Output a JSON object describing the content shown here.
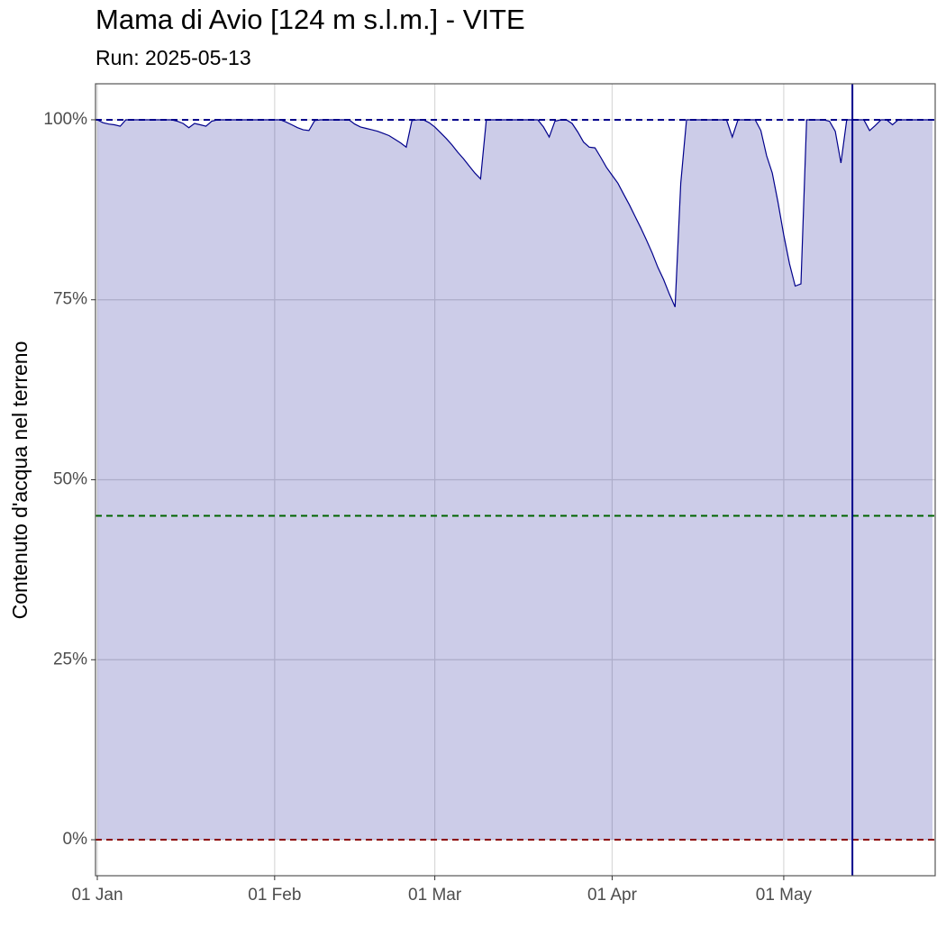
{
  "chart_data": {
    "type": "area",
    "title": "Mama di Avio [124 m s.l.m.] - VITE",
    "subtitle": "Run: 2025-05-13",
    "y_label": "Contenuto d'acqua nel terreno",
    "x": [
      "01-01",
      "01-02",
      "01-03",
      "01-04",
      "01-05",
      "01-06",
      "01-07",
      "01-08",
      "01-09",
      "01-10",
      "01-11",
      "01-12",
      "01-13",
      "01-14",
      "01-15",
      "01-16",
      "01-17",
      "01-18",
      "01-19",
      "01-20",
      "01-21",
      "01-22",
      "01-23",
      "01-24",
      "01-25",
      "01-26",
      "01-27",
      "01-28",
      "01-29",
      "01-30",
      "01-31",
      "02-01",
      "02-02",
      "02-03",
      "02-04",
      "02-05",
      "02-06",
      "02-07",
      "02-08",
      "02-09",
      "02-10",
      "02-11",
      "02-12",
      "02-13",
      "02-14",
      "02-15",
      "02-16",
      "02-17",
      "02-18",
      "02-19",
      "02-20",
      "02-21",
      "02-22",
      "02-23",
      "02-24",
      "02-25",
      "02-26",
      "02-27",
      "02-28",
      "03-01",
      "03-02",
      "03-03",
      "03-04",
      "03-05",
      "03-06",
      "03-07",
      "03-08",
      "03-09",
      "03-10",
      "03-11",
      "03-12",
      "03-13",
      "03-14",
      "03-15",
      "03-16",
      "03-17",
      "03-18",
      "03-19",
      "03-20",
      "03-21",
      "03-22",
      "03-23",
      "03-24",
      "03-25",
      "03-26",
      "03-27",
      "03-28",
      "03-29",
      "03-30",
      "03-31",
      "04-01",
      "04-02",
      "04-03",
      "04-04",
      "04-05",
      "04-06",
      "04-07",
      "04-08",
      "04-09",
      "04-10",
      "04-11",
      "04-12",
      "04-13",
      "04-14",
      "04-15",
      "04-16",
      "04-17",
      "04-18",
      "04-19",
      "04-20",
      "04-21",
      "04-22",
      "04-23",
      "04-24",
      "04-25",
      "04-26",
      "04-27",
      "04-28",
      "04-29",
      "04-30",
      "05-01",
      "05-02",
      "05-03",
      "05-04",
      "05-05",
      "05-06",
      "05-07",
      "05-08",
      "05-09",
      "05-10",
      "05-11",
      "05-12",
      "05-13",
      "05-14",
      "05-15",
      "05-16",
      "05-17",
      "05-18",
      "05-19",
      "05-20",
      "05-21",
      "05-22",
      "05-23",
      "05-24",
      "05-25",
      "05-26",
      "05-27"
    ],
    "series": [
      {
        "color": "#00008b",
        "values": [
          100,
          99.6,
          99.4,
          99.3,
          99.1,
          100,
          100,
          100,
          100,
          100,
          100,
          100,
          100,
          100,
          99.8,
          99.5,
          98.9,
          99.5,
          99.3,
          99.1,
          99.8,
          100,
          100,
          100,
          100,
          100,
          100,
          100,
          100,
          100,
          100,
          100,
          100,
          99.7,
          99.3,
          98.9,
          98.6,
          98.5,
          99.9,
          100,
          100,
          100,
          100,
          100,
          100,
          99.4,
          99.0,
          98.8,
          98.6,
          98.4,
          98.1,
          97.8,
          97.3,
          96.8,
          96.2,
          99.9,
          100,
          100,
          99.6,
          99.0,
          98.2,
          97.4,
          96.5,
          95.5,
          94.6,
          93.6,
          92.6,
          91.8,
          100,
          100,
          100,
          100,
          100,
          100,
          100,
          100,
          100,
          100,
          99.0,
          97.6,
          99.8,
          100,
          100,
          99.5,
          98.3,
          96.9,
          96.2,
          96.1,
          94.8,
          93.4,
          92.3,
          91.2,
          89.7,
          88.2,
          86.6,
          85.0,
          83.3,
          81.5,
          79.5,
          77.8,
          75.8,
          74.0,
          91.2,
          100,
          100,
          100,
          100,
          100,
          100,
          100,
          100,
          97.6,
          100,
          100,
          100,
          100,
          98.5,
          95.0,
          92.6,
          88.5,
          84.0,
          80.0,
          76.9,
          77.2,
          100,
          100,
          100,
          100,
          99.8,
          98.4,
          94.0,
          100,
          100,
          100,
          100,
          98.5,
          99.2,
          100,
          100,
          99.3,
          100,
          100,
          100,
          100,
          100,
          100,
          100
        ]
      }
    ],
    "xlim": [
      "01-01",
      "05-27"
    ],
    "xticks": [
      {
        "value": "01-01",
        "label": "01 Jan"
      },
      {
        "value": "02-01",
        "label": "01 Feb"
      },
      {
        "value": "03-01",
        "label": "01 Mar"
      },
      {
        "value": "04-01",
        "label": "01 Apr"
      },
      {
        "value": "05-01",
        "label": "01 May"
      }
    ],
    "ylim": [
      -5,
      105
    ],
    "yticks": [
      {
        "value": 0,
        "label": "0%"
      },
      {
        "value": 25,
        "label": "25%"
      },
      {
        "value": 50,
        "label": "50%"
      },
      {
        "value": 75,
        "label": "75%"
      },
      {
        "value": 100,
        "label": "100%"
      }
    ],
    "hlines": [
      {
        "value": 100,
        "color": "#00008b"
      },
      {
        "value": 45,
        "color": "#006400"
      },
      {
        "value": 0,
        "color": "#8b0000"
      }
    ],
    "vlines": [
      {
        "value": "05-13",
        "color": "#00008b"
      }
    ],
    "grid": true
  }
}
